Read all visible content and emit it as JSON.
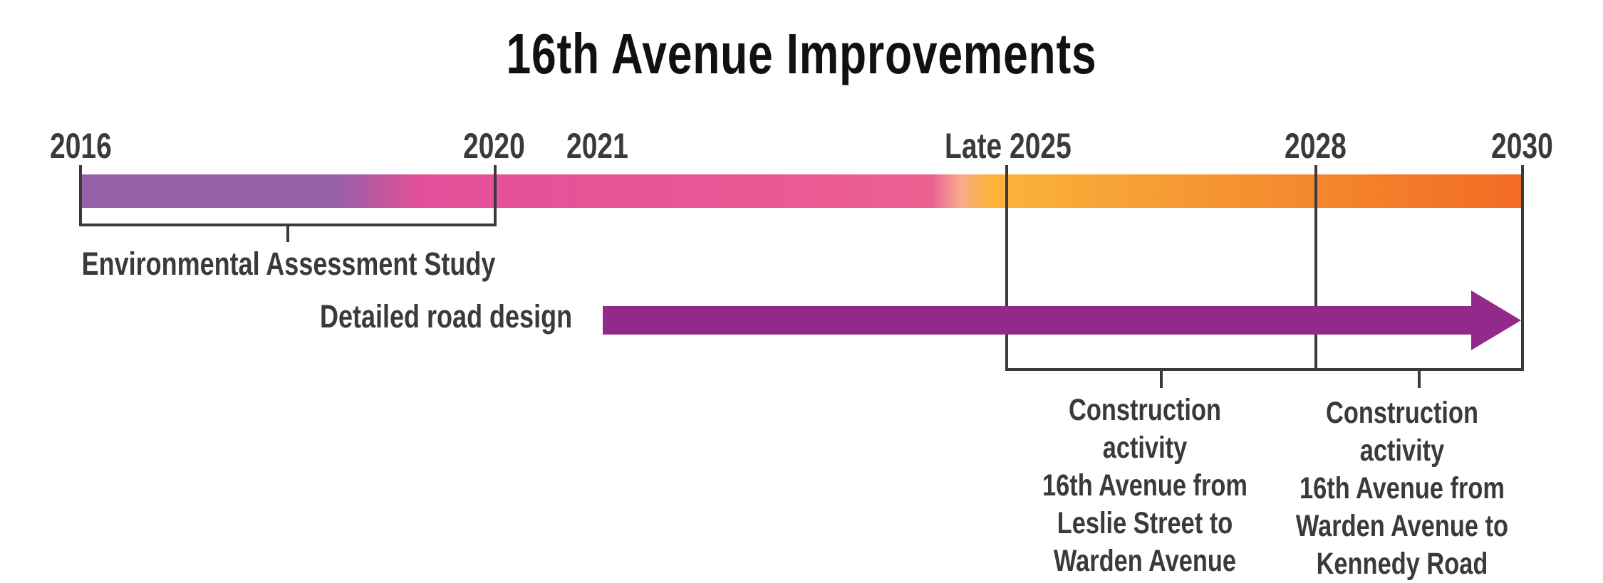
{
  "title": "16th Avenue Improvements",
  "years": {
    "y2016": "2016",
    "y2020": "2020",
    "y2021": "2021",
    "late2025": "Late 2025",
    "y2028": "2028",
    "y2030": "2030"
  },
  "phases": {
    "ea_study": "Environmental Assessment Study",
    "road_design": "Detailed road design",
    "construction_1": {
      "line1": "Construction activity",
      "line2": "16th Avenue from",
      "line3": "Leslie Street to",
      "line4": "Warden Avenue"
    },
    "construction_2": {
      "line1": "Construction activity",
      "line2": "16th Avenue from",
      "line3": "Warden Avenue to",
      "line4": "Kennedy Road"
    }
  },
  "colors": {
    "purple": "#9560a8",
    "pink": "#e95a9a",
    "yellow": "#fbb034",
    "orange": "#f26b24",
    "arrow": "#912a8a",
    "line": "#3a3a3c"
  }
}
